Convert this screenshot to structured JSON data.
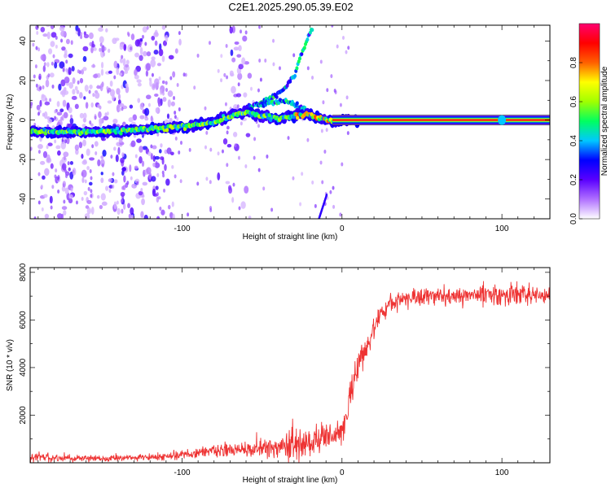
{
  "title": "C2E1.2025.290.05.39.E02",
  "chart_data": [
    {
      "type": "heatmap",
      "name": "spectrogram",
      "xlabel": "Height of straight line (km)",
      "ylabel": "Frequency (Hz)",
      "xlim": [
        -195,
        130
      ],
      "ylim": [
        -50,
        48
      ],
      "xticks": [
        -100,
        0,
        100
      ],
      "yticks": [
        -40,
        -20,
        0,
        20,
        40
      ],
      "ridge": {
        "x": [
          -195,
          -170,
          -150,
          -130,
          -110,
          -95,
          -80,
          -70,
          -60,
          -50,
          -40,
          -30,
          -22,
          -15,
          -8,
          0,
          10,
          130
        ],
        "y": [
          -6,
          -6,
          -6,
          -5,
          -4,
          -3,
          -1,
          2,
          4,
          2,
          1,
          2,
          3,
          1,
          0,
          0,
          0,
          0
        ]
      },
      "branches": [
        {
          "x": [
            -60,
            -48,
            -40,
            -35,
            -30,
            -25,
            -18
          ],
          "y": [
            6,
            10,
            13,
            17,
            22,
            34,
            48
          ]
        },
        {
          "x": [
            -52,
            -42,
            -35,
            -30,
            -22
          ],
          "y": [
            7,
            9,
            10,
            8,
            5
          ]
        }
      ],
      "colorbar": {
        "label": "Normalized spectral amplitude",
        "ticks": [
          "0.0",
          "0.2",
          "0.4",
          "0.6",
          "0.8"
        ],
        "range": [
          0,
          1
        ],
        "colors": [
          "#ffffff",
          "#b070ff",
          "#5a00ff",
          "#0000ff",
          "#00c8ff",
          "#00ff60",
          "#a0ff00",
          "#ffff00",
          "#ff6000",
          "#ff0000",
          "#ff0070"
        ]
      }
    },
    {
      "type": "line",
      "name": "snr",
      "xlabel": "Height of straight line (km)",
      "ylabel": "SNR (10 * v/v)",
      "xlim": [
        -195,
        130
      ],
      "ylim": [
        0,
        8200
      ],
      "xticks": [
        -100,
        0,
        100
      ],
      "yticks": [
        2000,
        4000,
        6000,
        8000
      ],
      "color": "#ee3333",
      "trend_x": [
        -195,
        -170,
        -150,
        -120,
        -100,
        -80,
        -60,
        -40,
        -30,
        -20,
        -10,
        -5,
        0,
        5,
        8,
        10,
        15,
        20,
        25,
        30,
        40,
        60,
        80,
        100,
        130
      ],
      "trend_y": [
        250,
        200,
        180,
        220,
        350,
        500,
        550,
        650,
        800,
        900,
        1100,
        1200,
        1400,
        2500,
        3800,
        4200,
        4800,
        5600,
        6300,
        6700,
        6900,
        7000,
        7050,
        7050,
        7000
      ],
      "noise_std": [
        150,
        100,
        80,
        90,
        130,
        180,
        200,
        300,
        400,
        450,
        350,
        300,
        300,
        450,
        500,
        500,
        400,
        300,
        250,
        230,
        230,
        230,
        240,
        300,
        250
      ]
    }
  ]
}
